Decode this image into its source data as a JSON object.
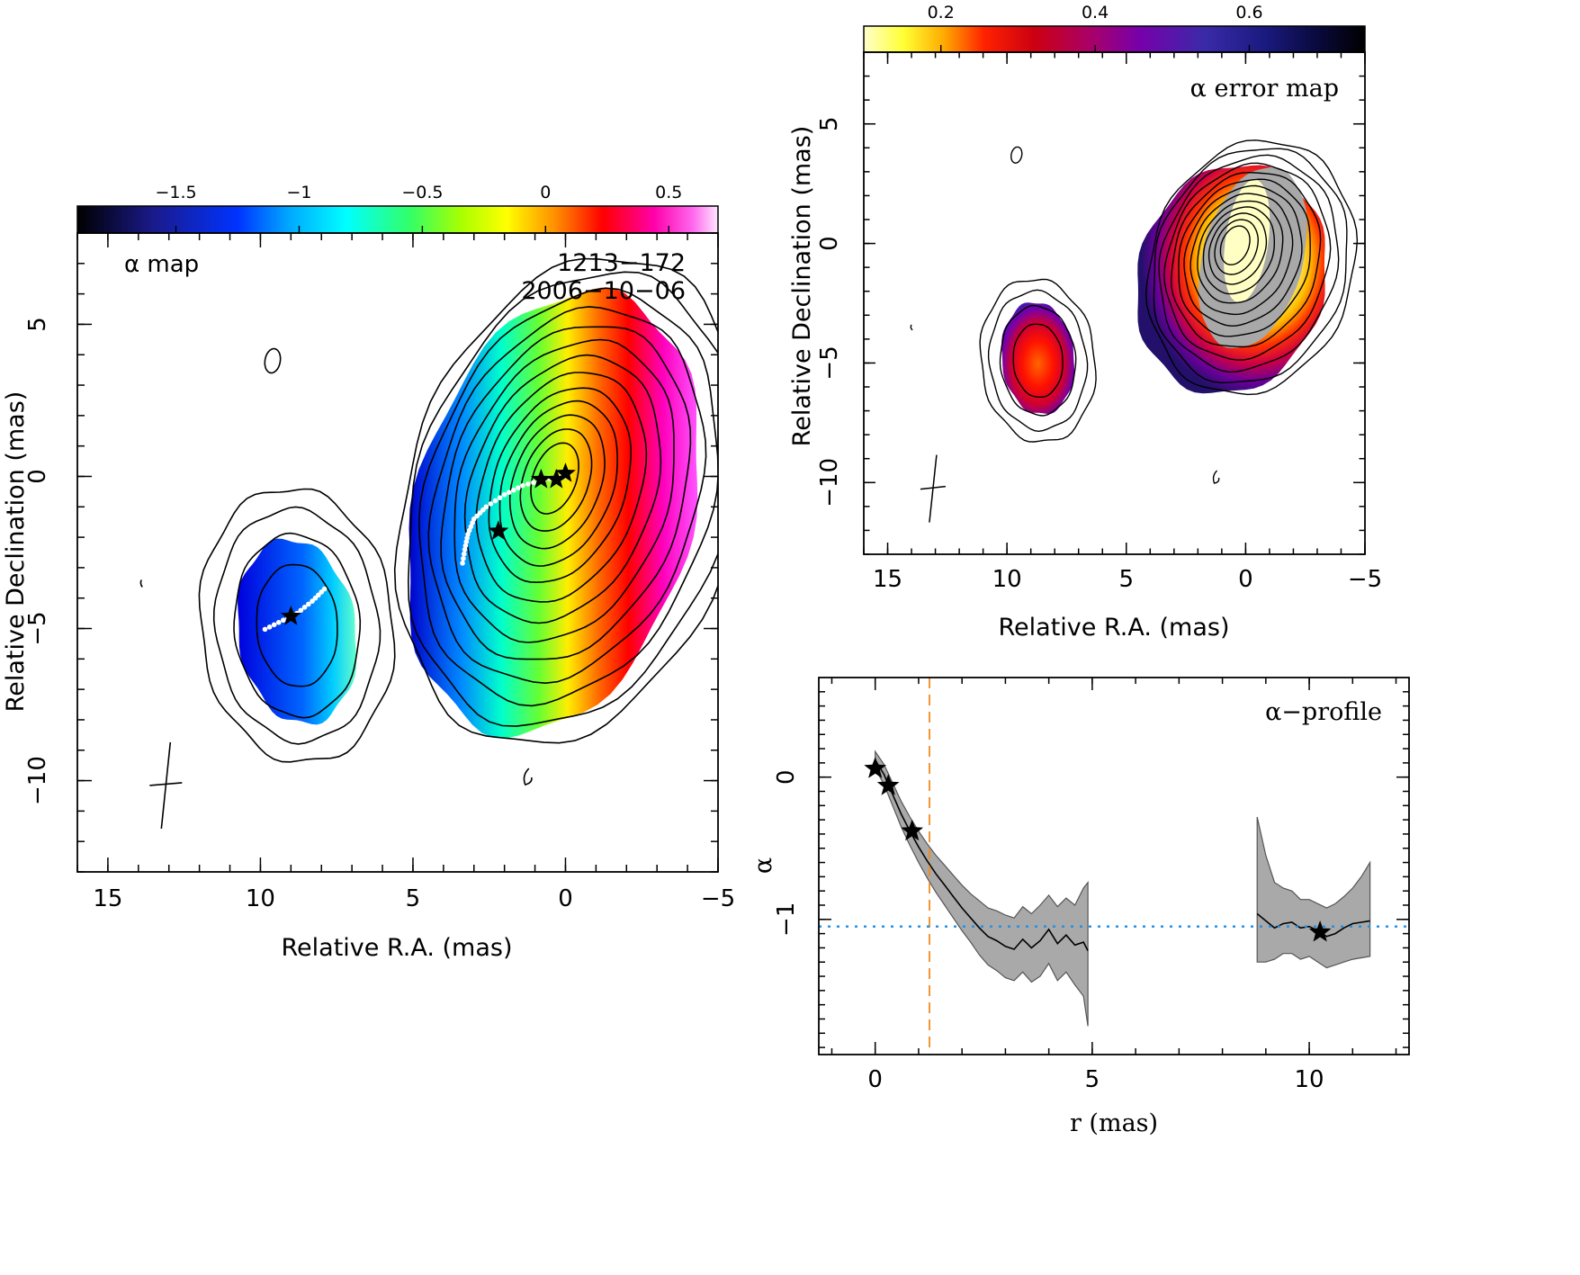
{
  "chart_data": [
    {
      "type": "heatmap",
      "panel_label": "α map",
      "source_name": "1213−172",
      "epoch": "2006−10−06",
      "xlabel": "Relative R.A. (mas)",
      "ylabel": "Relative Declination (mas)",
      "xlim": [
        16,
        -5
      ],
      "ylim": [
        -13,
        8
      ],
      "x_ticks": [
        15,
        10,
        5,
        0,
        -5
      ],
      "x_tick_labels": [
        "15",
        "10",
        "5",
        "0",
        "−5"
      ],
      "y_ticks": [
        5,
        0,
        -5,
        -10
      ],
      "y_tick_labels": [
        "5",
        "0",
        "−5",
        "−10"
      ],
      "colorbar": {
        "range": [
          -1.9,
          0.7
        ],
        "ticks": [
          -1.5,
          -1,
          -0.5,
          0,
          0.5
        ],
        "tick_labels": [
          "−1.5",
          "−1",
          "−0.5",
          "0",
          "0.5"
        ]
      },
      "core": {
        "center": [
          0,
          0
        ],
        "alpha_center": 0.1,
        "alpha_west": 0.6,
        "alpha_east": -1.6
      },
      "jet_knot": {
        "center": [
          8.8,
          -4.9
        ],
        "alpha": -1.2
      },
      "ridge_line": {
        "core_ridge": [
          [
            0.0,
            0.0
          ],
          [
            0.7,
            -0.1
          ],
          [
            1.4,
            -0.3
          ],
          [
            2.0,
            -0.6
          ],
          [
            2.6,
            -1.0
          ],
          [
            3.0,
            -1.4
          ],
          [
            3.2,
            -1.9
          ],
          [
            3.3,
            -2.4
          ],
          [
            3.4,
            -3.0
          ]
        ],
        "knot_ridge": [
          [
            7.9,
            -3.7
          ],
          [
            8.3,
            -4.1
          ],
          [
            8.8,
            -4.5
          ],
          [
            9.4,
            -4.8
          ],
          [
            10.0,
            -5.1
          ]
        ]
      },
      "stars": [
        [
          0.0,
          0.1
        ],
        [
          0.3,
          -0.1
        ],
        [
          0.8,
          -0.1
        ],
        [
          2.2,
          -1.8
        ],
        [
          9.0,
          -4.6
        ]
      ],
      "beam_cross": {
        "center": [
          13.1,
          -10.1
        ]
      }
    },
    {
      "type": "heatmap",
      "panel_label": "α error map",
      "xlabel": "Relative R.A. (mas)",
      "ylabel": "Relative Declination (mas)",
      "xlim": [
        16,
        -5
      ],
      "ylim": [
        -13,
        8
      ],
      "x_ticks": [
        15,
        10,
        5,
        0,
        -5
      ],
      "x_tick_labels": [
        "15",
        "10",
        "5",
        "0",
        "−5"
      ],
      "y_ticks": [
        5,
        0,
        -5,
        -10
      ],
      "y_tick_labels": [
        "5",
        "0",
        "−5",
        "−10"
      ],
      "colorbar": {
        "range": [
          0.1,
          0.75
        ],
        "ticks": [
          0.2,
          0.4,
          0.6
        ],
        "tick_labels": [
          "0.2",
          "0.4",
          "0.6"
        ]
      },
      "core": {
        "center": [
          0,
          0
        ],
        "error_center": 0.12,
        "error_edge": 0.6
      },
      "jet_knot": {
        "center": [
          8.7,
          -4.8
        ],
        "error_center": 0.28,
        "error_edge": 0.55
      },
      "beam_cross": {
        "center": [
          13.1,
          -10.2
        ]
      }
    },
    {
      "type": "line",
      "panel_label": "α−profile",
      "xlabel": "r (mas)",
      "ylabel": "α",
      "xlim": [
        -1.3,
        12.3
      ],
      "ylim": [
        -1.95,
        0.7
      ],
      "x_ticks": [
        0,
        5,
        10
      ],
      "x_tick_labels": [
        "0",
        "5",
        "10"
      ],
      "y_ticks": [
        0,
        -1
      ],
      "y_tick_labels": [
        "0",
        "−1"
      ],
      "vline_x": 1.25,
      "hline_y": -1.05,
      "series": [
        {
          "x": [
            0.0,
            0.2,
            0.4,
            0.6,
            0.8,
            1.0,
            1.2,
            1.4,
            1.6,
            1.8,
            2.0,
            2.2,
            2.4,
            2.6,
            2.8,
            3.0,
            3.2,
            3.4,
            3.6,
            3.8,
            4.0,
            4.2,
            4.4,
            4.6,
            4.8,
            4.9
          ],
          "y": [
            0.12,
            0.02,
            -0.12,
            -0.26,
            -0.38,
            -0.49,
            -0.59,
            -0.68,
            -0.76,
            -0.84,
            -0.92,
            -0.99,
            -1.06,
            -1.12,
            -1.15,
            -1.19,
            -1.21,
            -1.14,
            -1.2,
            -1.15,
            -1.07,
            -1.17,
            -1.11,
            -1.18,
            -1.16,
            -1.22
          ],
          "upper": [
            0.18,
            0.09,
            -0.04,
            -0.17,
            -0.28,
            -0.38,
            -0.47,
            -0.55,
            -0.62,
            -0.69,
            -0.76,
            -0.82,
            -0.87,
            -0.92,
            -0.94,
            -0.97,
            -0.99,
            -0.91,
            -0.96,
            -0.9,
            -0.83,
            -0.91,
            -0.85,
            -0.9,
            -0.78,
            -0.74
          ],
          "lower": [
            0.06,
            -0.05,
            -0.2,
            -0.35,
            -0.48,
            -0.6,
            -0.71,
            -0.81,
            -0.9,
            -0.99,
            -1.08,
            -1.16,
            -1.25,
            -1.32,
            -1.36,
            -1.41,
            -1.43,
            -1.37,
            -1.44,
            -1.4,
            -1.31,
            -1.43,
            -1.37,
            -1.46,
            -1.54,
            -1.75
          ]
        },
        {
          "x": [
            8.8,
            9.0,
            9.2,
            9.4,
            9.6,
            9.8,
            10.0,
            10.2,
            10.4,
            10.6,
            10.8,
            11.0,
            11.2,
            11.4
          ],
          "y": [
            -0.96,
            -1.01,
            -1.06,
            -1.03,
            -1.02,
            -1.06,
            -1.05,
            -1.08,
            -1.12,
            -1.1,
            -1.06,
            -1.03,
            -1.02,
            -1.01
          ],
          "upper": [
            -0.28,
            -0.55,
            -0.74,
            -0.78,
            -0.8,
            -0.86,
            -0.86,
            -0.89,
            -0.92,
            -0.89,
            -0.84,
            -0.78,
            -0.7,
            -0.6
          ],
          "lower": [
            -1.3,
            -1.3,
            -1.28,
            -1.24,
            -1.24,
            -1.28,
            -1.26,
            -1.3,
            -1.34,
            -1.32,
            -1.3,
            -1.28,
            -1.27,
            -1.26
          ]
        }
      ],
      "stars": [
        [
          0.0,
          0.06
        ],
        [
          0.3,
          -0.06
        ],
        [
          0.85,
          -0.38
        ],
        [
          10.25,
          -1.09
        ]
      ]
    }
  ]
}
